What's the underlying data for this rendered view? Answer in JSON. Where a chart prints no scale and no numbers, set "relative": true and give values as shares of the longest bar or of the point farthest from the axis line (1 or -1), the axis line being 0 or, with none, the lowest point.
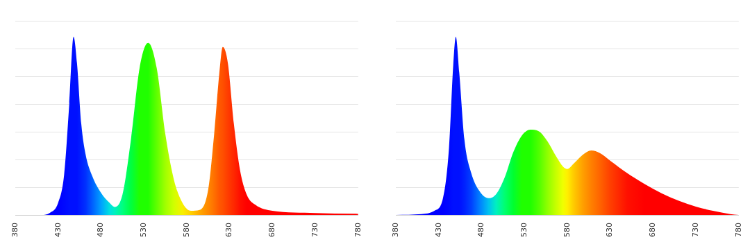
{
  "chart_data": [
    {
      "type": "area",
      "relative": true,
      "grid": "y",
      "xlim": [
        380,
        780
      ],
      "xticks": [
        380,
        430,
        480,
        530,
        580,
        630,
        680,
        730,
        780
      ],
      "x": [
        380,
        410,
        420,
        430,
        437,
        443,
        448,
        452,
        457,
        462,
        470,
        480,
        490,
        496,
        505,
        515,
        525,
        535,
        545,
        555,
        565,
        575,
        585,
        595,
        605,
        612,
        618,
        622,
        628,
        635,
        642,
        650,
        660,
        680,
        730,
        780
      ],
      "values": [
        0,
        0,
        0.011,
        0.068,
        0.227,
        0.625,
        1,
        0.852,
        0.511,
        0.341,
        0.216,
        0.125,
        0.068,
        0.045,
        0.114,
        0.426,
        0.824,
        0.966,
        0.824,
        0.455,
        0.199,
        0.068,
        0.023,
        0.028,
        0.142,
        0.455,
        0.795,
        0.943,
        0.852,
        0.511,
        0.256,
        0.114,
        0.057,
        0.023,
        0.011,
        0.006
      ],
      "colors": [
        "#0000ff",
        "#0000ff",
        "#0000ff",
        "#0000ff",
        "#0008ff",
        "#0010ff",
        "#0010ff",
        "#0010ff",
        "#0020ff",
        "#0030ff",
        "#0060ff",
        "#00a0ff",
        "#00e0e0",
        "#00f0c0",
        "#00ff80",
        "#00ff40",
        "#20ff00",
        "#20ff00",
        "#60ff00",
        "#a0ff00",
        "#d0ff00",
        "#f8f000",
        "#ffd000",
        "#ffa800",
        "#ff8800",
        "#ff7000",
        "#ff5800",
        "#ff5000",
        "#ff3c00",
        "#ff2800",
        "#ff1000",
        "#ff0000",
        "#ff0000",
        "#ff0000",
        "#ff0000",
        "#ff0000"
      ]
    },
    {
      "type": "area",
      "relative": true,
      "grid": "y",
      "xlim": [
        380,
        780
      ],
      "xticks": [
        380,
        430,
        480,
        530,
        580,
        630,
        680,
        730,
        780
      ],
      "x": [
        380,
        410,
        425,
        435,
        442,
        447,
        450,
        454,
        460,
        468,
        478,
        488,
        497,
        507,
        517,
        527,
        537,
        547,
        557,
        567,
        575,
        580,
        588,
        598,
        608,
        618,
        630,
        650,
        670,
        690,
        710,
        730,
        750,
        770,
        780
      ],
      "values": [
        0,
        0.005,
        0.023,
        0.094,
        0.376,
        0.845,
        1,
        0.798,
        0.423,
        0.235,
        0.131,
        0.094,
        0.117,
        0.211,
        0.352,
        0.446,
        0.479,
        0.469,
        0.413,
        0.329,
        0.272,
        0.258,
        0.291,
        0.338,
        0.362,
        0.347,
        0.305,
        0.235,
        0.174,
        0.122,
        0.08,
        0.047,
        0.023,
        0.005,
        0
      ],
      "colors": [
        "#0000ff",
        "#0000ff",
        "#0000ff",
        "#0000ff",
        "#0008ff",
        "#0010ff",
        "#0010ff",
        "#0010ff",
        "#0020ff",
        "#0040ff",
        "#0080ff",
        "#00c0f0",
        "#00f0c0",
        "#00ff70",
        "#00ff30",
        "#20ff00",
        "#20ff00",
        "#50ff00",
        "#90ff00",
        "#c8ff00",
        "#f0ff00",
        "#ffef00",
        "#ffc800",
        "#ffa000",
        "#ff8000",
        "#ff6400",
        "#ff4000",
        "#ff1000",
        "#ff0000",
        "#ff0000",
        "#ff0000",
        "#ff0000",
        "#ff0000",
        "#ff0000",
        "#ff0000"
      ]
    }
  ]
}
